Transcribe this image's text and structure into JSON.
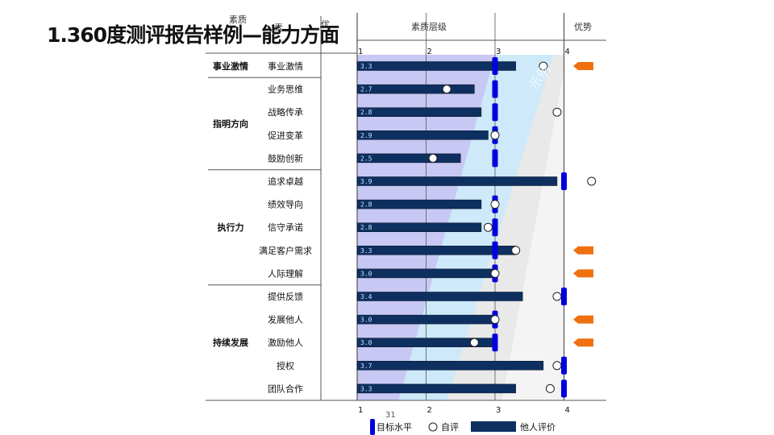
{
  "slide": {
    "title": "1.360度测评报告样例—能力方面",
    "page_number": "31"
  },
  "header": {
    "quality_level_label": "素质层级",
    "advantage_label": "优势",
    "fragment_1": "素质",
    "fragment_2": "素",
    "fragment_3": "优",
    "watermark": "示例"
  },
  "chart_data": {
    "type": "bar",
    "orientation": "horizontal",
    "xlim": [
      1,
      4
    ],
    "xticks": [
      1,
      2,
      3,
      4
    ],
    "groups": [
      {
        "name": "事业激情",
        "items": [
          "事业激情"
        ]
      },
      {
        "name": "指明方向",
        "items": [
          "业务思维",
          "战略传承",
          "促进变革",
          "鼓励创新"
        ]
      },
      {
        "name": "执行力",
        "items": [
          "追求卓越",
          "绩效导向",
          "信守承诺",
          "满足客户需求",
          "人际理解"
        ]
      },
      {
        "name": "持续发展",
        "items": [
          "提供反馈",
          "发展他人",
          "激励他人",
          "授权",
          "团队合作"
        ]
      }
    ],
    "categories": [
      "事业激情",
      "业务思维",
      "战略传承",
      "促进变革",
      "鼓励创新",
      "追求卓越",
      "绩效导向",
      "信守承诺",
      "满足客户需求",
      "人际理解",
      "提供反馈",
      "发展他人",
      "激励他人",
      "授权",
      "团队合作"
    ],
    "series": [
      {
        "name": "他人评价",
        "marker": "bar",
        "color": "#0e3060",
        "values": [
          3.3,
          2.7,
          2.8,
          2.9,
          2.5,
          3.9,
          2.8,
          2.8,
          3.3,
          3.0,
          3.4,
          3.0,
          3.0,
          3.7,
          3.3
        ]
      },
      {
        "name": "自评",
        "marker": "circle",
        "values": [
          3.7,
          2.3,
          3.9,
          3.0,
          2.1,
          4.4,
          3.0,
          2.9,
          3.3,
          3.0,
          3.9,
          3.0,
          2.7,
          3.9,
          3.8
        ]
      },
      {
        "name": "目标水平",
        "marker": "tick",
        "color": "#0000dd",
        "values": [
          3,
          3,
          3,
          3,
          3,
          4,
          3,
          3,
          3,
          3,
          4,
          3,
          3,
          4,
          4
        ]
      }
    ],
    "value_labels": [
      "3.3",
      "2.7",
      "2.8",
      "2.9",
      "2.5",
      "3.9",
      "2.8",
      "2.8",
      "3.3",
      "3.0",
      "3.4",
      "3.0",
      "3.0",
      "3.7",
      "3.3"
    ],
    "advantage": [
      true,
      false,
      false,
      false,
      false,
      false,
      false,
      false,
      true,
      true,
      false,
      true,
      true,
      false,
      false
    ],
    "advantage_color": "#f07010",
    "band_colors": [
      "#c8c8f4",
      "#cde9fa",
      "#e9e9e9",
      "#f4f4f4"
    ],
    "legend": {
      "placement": "bottom",
      "items": [
        "目标水平",
        "自评",
        "他人评价"
      ]
    }
  }
}
